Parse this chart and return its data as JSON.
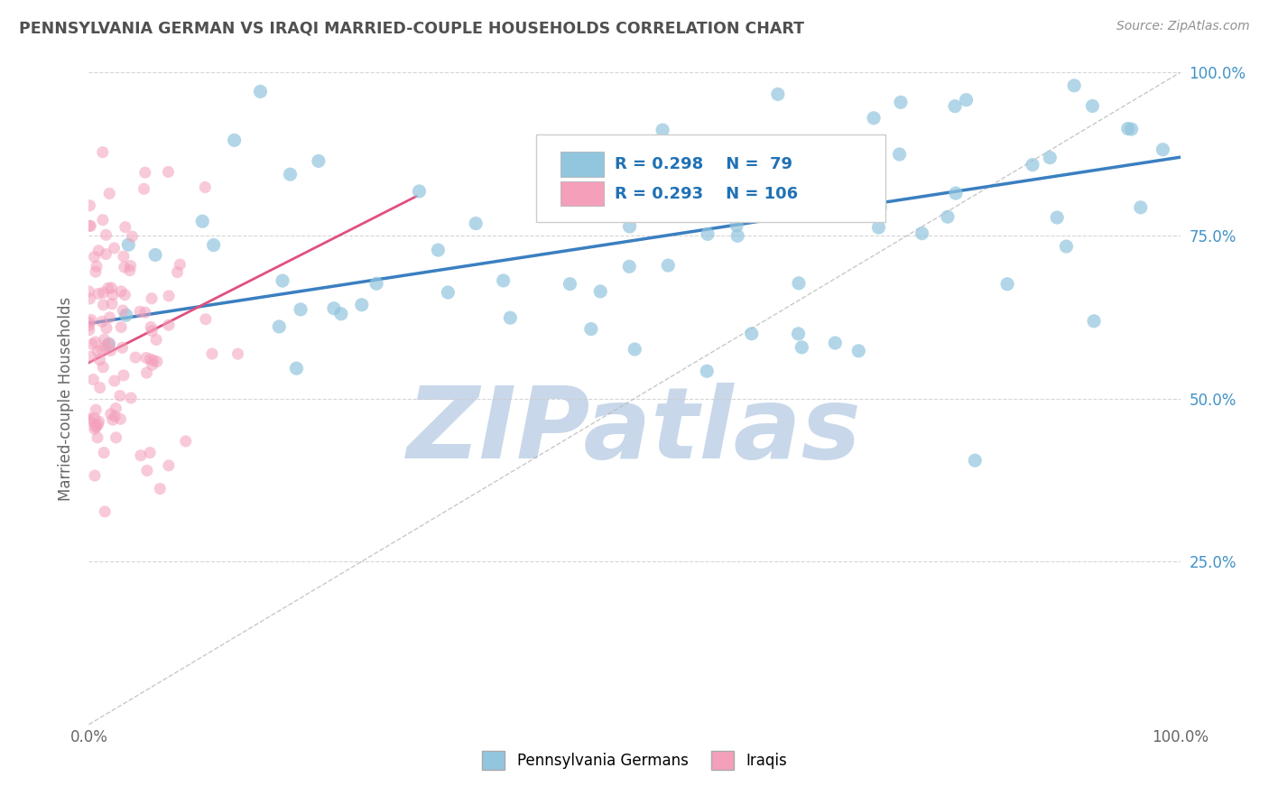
{
  "title": "PENNSYLVANIA GERMAN VS IRAQI MARRIED-COUPLE HOUSEHOLDS CORRELATION CHART",
  "source": "Source: ZipAtlas.com",
  "ylabel": "Married-couple Households",
  "xlim": [
    0.0,
    1.0
  ],
  "ylim": [
    0.0,
    1.0
  ],
  "blue_R": 0.298,
  "blue_N": 79,
  "pink_R": 0.293,
  "pink_N": 106,
  "blue_color": "#92C5DE",
  "pink_color": "#F4A0BB",
  "blue_line_color": "#3A7FC1",
  "pink_line_color": "#E05080",
  "legend_label_blue": "Pennsylvania Germans",
  "legend_label_pink": "Iraqis",
  "legend_R_blue": "R = 0.298",
  "legend_N_blue": "N =  79",
  "legend_R_pink": "R = 0.293",
  "legend_N_pink": "N = 106",
  "watermark": "ZIPatlas",
  "watermark_color": "#C8D8EA",
  "background_color": "#FFFFFF",
  "title_color": "#505050",
  "source_color": "#909090",
  "axis_label_color": "#4292C6",
  "blue_line_intercept": 0.615,
  "blue_line_slope": 0.255,
  "pink_line_intercept": 0.555,
  "pink_line_slope": 0.85,
  "pink_line_xmax": 0.3,
  "diag_color": "#BBBBBB"
}
